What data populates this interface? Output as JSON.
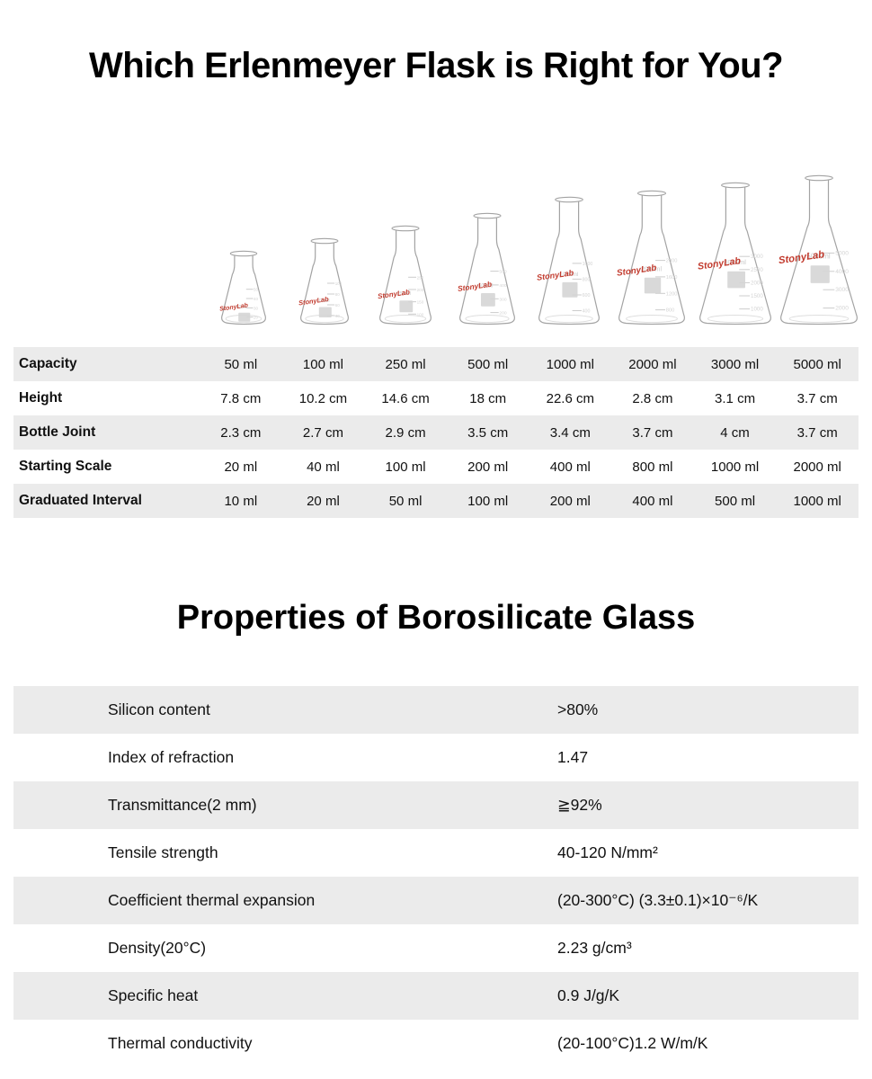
{
  "titles": {
    "section1": "Which Erlenmeyer Flask is Right for You?",
    "section2": "Properties of Borosilicate Glass"
  },
  "flasks": {
    "brand": "StonyLab",
    "capacities": [
      "50ml",
      "100ml",
      "250ml",
      "500ml",
      "1000ml",
      "2000ml",
      "3000ml",
      "5000ml"
    ]
  },
  "spec_table": {
    "rows": [
      {
        "label": "Capacity",
        "values": [
          "50 ml",
          "100 ml",
          "250 ml",
          "500 ml",
          "1000 ml",
          "2000 ml",
          "3000 ml",
          "5000 ml"
        ]
      },
      {
        "label": "Height",
        "values": [
          "7.8 cm",
          "10.2 cm",
          "14.6 cm",
          "18 cm",
          "22.6 cm",
          "2.8 cm",
          "3.1 cm",
          "3.7 cm"
        ]
      },
      {
        "label": "Bottle Joint",
        "values": [
          "2.3 cm",
          "2.7 cm",
          "2.9 cm",
          "3.5 cm",
          "3.4 cm",
          "3.7 cm",
          "4 cm",
          "3.7 cm"
        ]
      },
      {
        "label": "Starting Scale",
        "values": [
          "20 ml",
          "40 ml",
          "100 ml",
          "200 ml",
          "400 ml",
          "800 ml",
          "1000 ml",
          "2000 ml"
        ]
      },
      {
        "label": "Graduated Interval",
        "values": [
          "10 ml",
          "20 ml",
          "50 ml",
          "100 ml",
          "200 ml",
          "400 ml",
          "500 ml",
          "1000 ml"
        ]
      }
    ]
  },
  "properties_table": {
    "rows": [
      {
        "label": "Silicon content",
        "value": ">80%"
      },
      {
        "label": "Index of refraction",
        "value": "1.47"
      },
      {
        "label": "Transmittance(2 mm)",
        "value": "≧92%"
      },
      {
        "label": "Tensile strength",
        "value": "40-120 N/mm²"
      },
      {
        "label": "Coefficient thermal expansion",
        "value": "(20-300°C) (3.3±0.1)×10⁻⁶/K"
      },
      {
        "label": "Density(20°C)",
        "value": "2.23 g/cm³"
      },
      {
        "label": "Specific heat",
        "value": "0.9 J/g/K"
      },
      {
        "label": "Thermal conductivity",
        "value": "(20-100°C)1.2 W/m/K"
      }
    ]
  },
  "colors": {
    "row_stripe": "#ebebeb",
    "brand_red": "#c23b2e",
    "glass_outline": "#a3a3a3"
  }
}
